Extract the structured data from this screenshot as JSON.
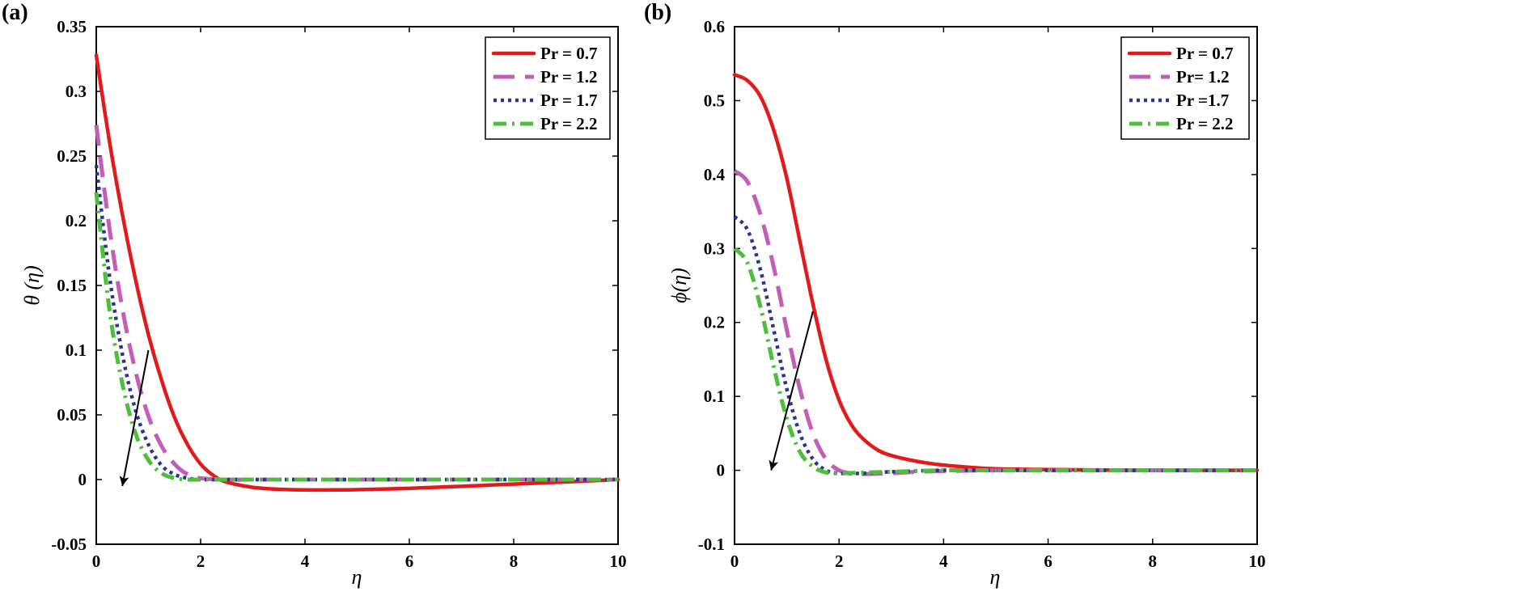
{
  "chart_data": [
    {
      "type": "line",
      "panel_label": "(a)",
      "xlabel": "η",
      "ylabel": "θ (η)",
      "xlim": [
        0,
        10
      ],
      "ylim": [
        -0.05,
        0.35
      ],
      "xticks": [
        0,
        2,
        4,
        6,
        8,
        10
      ],
      "xtick_labels": [
        "0",
        "2",
        "4",
        "6",
        "8",
        "10"
      ],
      "yticks": [
        -0.05,
        0,
        0.05,
        0.1,
        0.15,
        0.2,
        0.25,
        0.3,
        0.35
      ],
      "ytick_labels": [
        "-0.05",
        "0",
        "0.05",
        "0.1",
        "0.15",
        "0.2",
        "0.25",
        "0.3",
        "0.35"
      ],
      "grid": false,
      "legend_position": "top-right",
      "arrow": {
        "from": [
          1.0,
          0.1
        ],
        "to": [
          0.5,
          -0.005
        ]
      },
      "series": [
        {
          "name": "Pr = 0.7",
          "color": "#e31a1c",
          "style": "solid",
          "x": [
            0,
            0.25,
            0.5,
            0.75,
            1.0,
            1.25,
            1.5,
            1.75,
            2.0,
            2.25,
            2.5,
            3.0,
            3.5,
            4.0,
            4.5,
            5.0,
            6.0,
            7.0,
            8.0,
            9.0,
            10.0
          ],
          "y": [
            0.328,
            0.262,
            0.205,
            0.155,
            0.112,
            0.077,
            0.048,
            0.027,
            0.012,
            0.003,
            -0.002,
            -0.006,
            -0.0075,
            -0.008,
            -0.008,
            -0.0078,
            -0.0068,
            -0.0052,
            -0.0035,
            -0.0018,
            0.0
          ]
        },
        {
          "name": "Pr = 1.2",
          "color": "#c45cb8",
          "style": "dash",
          "x": [
            0,
            0.25,
            0.5,
            0.75,
            1.0,
            1.25,
            1.5,
            1.75,
            2.0,
            2.5,
            3.0,
            4.0,
            5.0,
            6.0,
            8.0,
            10.0
          ],
          "y": [
            0.274,
            0.195,
            0.132,
            0.084,
            0.049,
            0.026,
            0.012,
            0.004,
            0.001,
            0.0,
            0.0,
            0.0,
            0.0,
            0.0,
            0.0,
            0.0
          ]
        },
        {
          "name": "Pr = 1.7",
          "color": "#283593",
          "style": "dot",
          "x": [
            0,
            0.25,
            0.5,
            0.75,
            1.0,
            1.25,
            1.5,
            1.75,
            2.0,
            2.5,
            3.0,
            4.0,
            5.0,
            6.0,
            8.0,
            10.0
          ],
          "y": [
            0.243,
            0.158,
            0.097,
            0.054,
            0.027,
            0.011,
            0.004,
            0.001,
            0.0,
            0.0,
            0.0,
            0.0,
            0.0,
            0.0,
            0.0,
            0.0
          ]
        },
        {
          "name": "Pr = 2.2",
          "color": "#4cbf3c",
          "style": "dashdot",
          "x": [
            0,
            0.25,
            0.5,
            0.75,
            1.0,
            1.25,
            1.5,
            1.75,
            2.0,
            2.5,
            3.0,
            4.0,
            5.0,
            6.0,
            8.0,
            10.0
          ],
          "y": [
            0.222,
            0.132,
            0.074,
            0.036,
            0.015,
            0.005,
            0.001,
            0.0,
            0.0,
            0.0,
            0.0,
            0.0,
            0.0,
            0.0,
            0.0,
            0.0
          ]
        }
      ]
    },
    {
      "type": "line",
      "panel_label": "(b)",
      "xlabel": "η",
      "ylabel": "ϕ(η)",
      "xlim": [
        0,
        10
      ],
      "ylim": [
        -0.1,
        0.6
      ],
      "xticks": [
        0,
        2,
        4,
        6,
        8,
        10
      ],
      "xtick_labels": [
        "0",
        "2",
        "4",
        "6",
        "8",
        "10"
      ],
      "yticks": [
        -0.1,
        0,
        0.1,
        0.2,
        0.3,
        0.4,
        0.5,
        0.6
      ],
      "ytick_labels": [
        "-0.1",
        "0",
        "0.1",
        "0.2",
        "0.3",
        "0.4",
        "0.5",
        "0.6"
      ],
      "grid": false,
      "legend_position": "top-right",
      "arrow": {
        "from": [
          1.5,
          0.215
        ],
        "to": [
          0.7,
          0.0
        ]
      },
      "series": [
        {
          "name": "Pr = 0.7",
          "color": "#e31a1c",
          "style": "solid",
          "x": [
            0,
            0.25,
            0.5,
            0.75,
            1.0,
            1.25,
            1.5,
            1.75,
            2.0,
            2.25,
            2.5,
            2.75,
            3.0,
            3.5,
            4.0,
            4.5,
            5.0,
            6.0,
            8.0,
            10.0
          ],
          "y": [
            0.535,
            0.527,
            0.505,
            0.46,
            0.395,
            0.31,
            0.225,
            0.15,
            0.095,
            0.06,
            0.04,
            0.027,
            0.02,
            0.012,
            0.007,
            0.004,
            0.002,
            0.001,
            0.0,
            0.0
          ]
        },
        {
          "name": "Pr= 1.2",
          "color": "#c45cb8",
          "style": "dash",
          "x": [
            0,
            0.25,
            0.5,
            0.75,
            1.0,
            1.25,
            1.5,
            1.75,
            2.0,
            2.25,
            2.5,
            3.0,
            3.5,
            4.0,
            5.0,
            6.0,
            8.0,
            10.0
          ],
          "y": [
            0.405,
            0.39,
            0.345,
            0.275,
            0.19,
            0.11,
            0.05,
            0.015,
            0.0,
            -0.004,
            -0.005,
            -0.004,
            -0.002,
            -0.001,
            0.0,
            0.0,
            0.0,
            0.0
          ]
        },
        {
          "name": "Pr =1.7",
          "color": "#283593",
          "style": "dot",
          "x": [
            0,
            0.25,
            0.5,
            0.75,
            1.0,
            1.25,
            1.5,
            1.75,
            2.0,
            2.5,
            3.0,
            4.0,
            5.0,
            6.0,
            8.0,
            10.0
          ],
          "y": [
            0.343,
            0.325,
            0.27,
            0.19,
            0.11,
            0.05,
            0.015,
            0.0,
            -0.004,
            -0.004,
            -0.002,
            0.0,
            0.0,
            0.0,
            0.0,
            0.0
          ]
        },
        {
          "name": "Pr = 2.2",
          "color": "#4cbf3c",
          "style": "dashdot",
          "x": [
            0,
            0.25,
            0.5,
            0.75,
            1.0,
            1.25,
            1.5,
            1.75,
            2.0,
            2.5,
            3.0,
            4.0,
            5.0,
            6.0,
            8.0,
            10.0
          ],
          "y": [
            0.3,
            0.28,
            0.22,
            0.14,
            0.07,
            0.025,
            0.005,
            -0.003,
            -0.004,
            -0.003,
            -0.002,
            0.0,
            0.0,
            0.0,
            0.0,
            0.0
          ]
        }
      ]
    }
  ]
}
